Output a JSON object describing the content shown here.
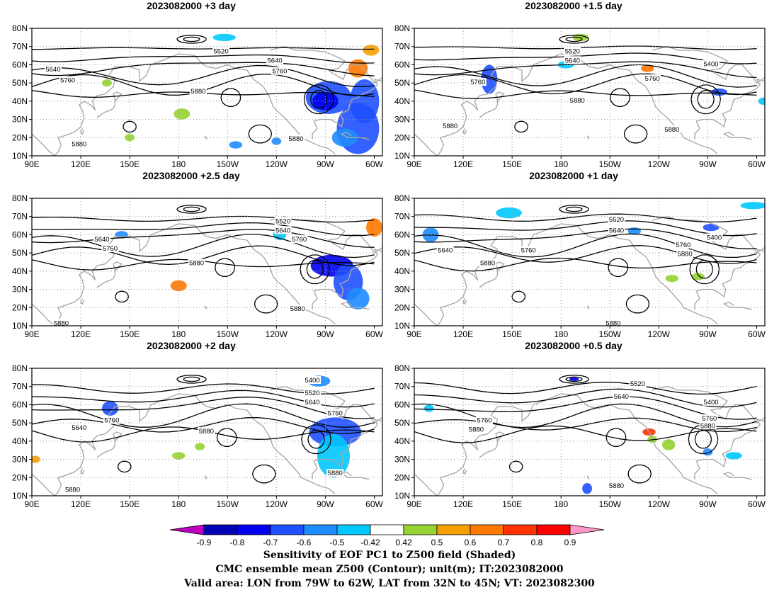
{
  "panels": [
    {
      "title": "2023082000 +3 day",
      "labels": [
        {
          "text": "5520",
          "lon": 206,
          "lat": 67
        },
        {
          "text": "5640",
          "lon": 103,
          "lat": 57
        },
        {
          "text": "5640",
          "lon": 239,
          "lat": 62
        },
        {
          "text": "5760",
          "lon": 112,
          "lat": 51
        },
        {
          "text": "5760",
          "lon": 242,
          "lat": 56
        },
        {
          "text": "5880",
          "lon": 192,
          "lat": 45
        },
        {
          "text": "5880",
          "lon": 252,
          "lat": 19
        },
        {
          "text": "5880",
          "lon": 119,
          "lat": 16
        }
      ]
    },
    {
      "title": "2023082000 +1.5 day",
      "labels": [
        {
          "text": "5520",
          "lon": 187,
          "lat": 67
        },
        {
          "text": "5640",
          "lon": 187,
          "lat": 62
        },
        {
          "text": "5400",
          "lon": 272,
          "lat": 60
        },
        {
          "text": "5760",
          "lon": 236,
          "lat": 52
        },
        {
          "text": "5760",
          "lon": 129,
          "lat": 50
        },
        {
          "text": "5880",
          "lon": 190,
          "lat": 40
        },
        {
          "text": "5880",
          "lon": 112,
          "lat": 26
        },
        {
          "text": "5880",
          "lon": 248,
          "lat": 24
        }
      ]
    },
    {
      "title": "2023082000 +2.5 day",
      "labels": [
        {
          "text": "5520",
          "lon": 244,
          "lat": 67
        },
        {
          "text": "5640",
          "lon": 244,
          "lat": 62
        },
        {
          "text": "5640",
          "lon": 133,
          "lat": 57
        },
        {
          "text": "5760",
          "lon": 138,
          "lat": 52
        },
        {
          "text": "5760",
          "lon": 254,
          "lat": 57
        },
        {
          "text": "5880",
          "lon": 191,
          "lat": 44
        },
        {
          "text": "5880",
          "lon": 253,
          "lat": 19
        },
        {
          "text": "5880",
          "lon": 108,
          "lat": 11
        }
      ]
    },
    {
      "title": "2023082000 +1 day",
      "labels": [
        {
          "text": "5520",
          "lon": 214,
          "lat": 68
        },
        {
          "text": "5640",
          "lon": 214,
          "lat": 62
        },
        {
          "text": "5400",
          "lon": 274,
          "lat": 58
        },
        {
          "text": "5760",
          "lon": 160,
          "lat": 51
        },
        {
          "text": "5760",
          "lon": 255,
          "lat": 54
        },
        {
          "text": "5880",
          "lon": 256,
          "lat": 49
        },
        {
          "text": "5640",
          "lon": 109,
          "lat": 51
        },
        {
          "text": "5880",
          "lon": 135,
          "lat": 44
        },
        {
          "text": "5880",
          "lon": 212,
          "lat": 11
        }
      ]
    },
    {
      "title": "2023082000 +2 day",
      "labels": [
        {
          "text": "5400",
          "lon": 262,
          "lat": 73
        },
        {
          "text": "5520",
          "lon": 262,
          "lat": 66
        },
        {
          "text": "5640",
          "lon": 262,
          "lat": 61
        },
        {
          "text": "5760",
          "lon": 276,
          "lat": 55
        },
        {
          "text": "5760",
          "lon": 139,
          "lat": 51
        },
        {
          "text": "5640",
          "lon": 119,
          "lat": 47
        },
        {
          "text": "5880",
          "lon": 197,
          "lat": 45
        },
        {
          "text": "5880",
          "lon": 276,
          "lat": 22
        },
        {
          "text": "5880",
          "lon": 115,
          "lat": 13
        }
      ]
    },
    {
      "title": "2023082000 +0.5 day",
      "labels": [
        {
          "text": "5520",
          "lon": 227,
          "lat": 71
        },
        {
          "text": "5640",
          "lon": 217,
          "lat": 64
        },
        {
          "text": "5400",
          "lon": 272,
          "lat": 61
        },
        {
          "text": "5760",
          "lon": 133,
          "lat": 51
        },
        {
          "text": "5760",
          "lon": 271,
          "lat": 52
        },
        {
          "text": "5880",
          "lon": 270,
          "lat": 48
        },
        {
          "text": "5880",
          "lon": 128,
          "lat": 46
        },
        {
          "text": "5880",
          "lon": 214,
          "lat": 15
        }
      ]
    }
  ],
  "axes": {
    "xticks": [
      "90E",
      "120E",
      "150E",
      "180",
      "150W",
      "120W",
      "90W",
      "60W"
    ],
    "yticks": [
      "10N",
      "20N",
      "30N",
      "40N",
      "50N",
      "60N",
      "70N",
      "80N"
    ],
    "lon_range": [
      90,
      305
    ],
    "lat_range": [
      10,
      80
    ]
  },
  "colorbar": {
    "labels": [
      "-0.9",
      "-0.8",
      "-0.7",
      "-0.6",
      "-0.5",
      "-0.42",
      "0.42",
      "0.5",
      "0.6",
      "0.7",
      "0.8",
      "0.9"
    ],
    "colors": [
      "#c000c0",
      "#0000b4",
      "#0000f0",
      "#1e50ff",
      "#1e8cff",
      "#00c8ff",
      "#ffffff",
      "#96d232",
      "#f5a000",
      "#ff7800",
      "#ff3200",
      "#ff0000",
      "#ff96c8"
    ]
  },
  "captions": [
    "Sensitivity of EOF PC1 to Z500 field (Shaded)",
    "CMC ensemble mean Z500 (Contour); unit(m); IT:2023082000",
    "Valid area: LON from 79W to 62W, LAT from 32N to 45N; VT: 2023082300"
  ]
}
